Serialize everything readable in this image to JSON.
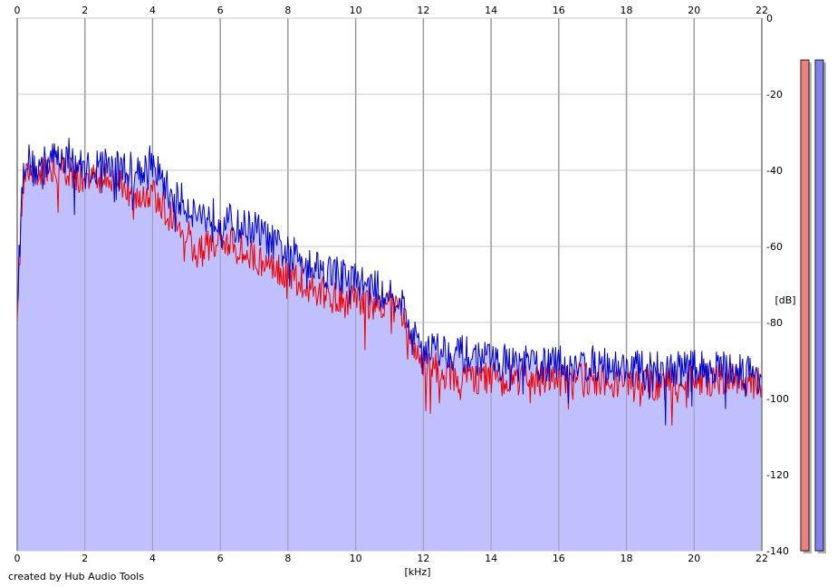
{
  "credit": "created by Hub Audio Tools",
  "chart_data": {
    "type": "area",
    "x_unit": "[kHz]",
    "y_unit": "[dB]",
    "xlim": [
      0,
      22
    ],
    "ylim": [
      -140,
      0
    ],
    "x_ticks": [
      "0",
      "2",
      "4",
      "6",
      "8",
      "10",
      "12",
      "14",
      "16",
      "18",
      "20",
      "22"
    ],
    "y_ticks": [
      "0",
      "-20",
      "-40",
      "-60",
      "-80",
      "-100",
      "-120",
      "-140"
    ],
    "grid": true,
    "colors": {
      "fill": "#c0c0ff",
      "series_blue": "#0000cc",
      "series_red": "#ee0000",
      "meter_red": "#f08080",
      "meter_blue": "#8080f0",
      "grid": "#a0a0a0"
    },
    "series": [
      {
        "color": "blue",
        "x": [
          0,
          0.15,
          0.25,
          0.5,
          1.0,
          1.5,
          2.0,
          2.5,
          3.0,
          3.5,
          4.0,
          4.5,
          5.0,
          5.5,
          6.0,
          6.5,
          7.0,
          7.5,
          8.0,
          8.5,
          9.0,
          9.5,
          10.0,
          10.5,
          11.0,
          11.3,
          11.7,
          12.0,
          12.5,
          13.0,
          13.5,
          14.0,
          15.0,
          16.0,
          17.0,
          18.0,
          19.0,
          20.0,
          21.0,
          22.0
        ],
        "y": [
          -75,
          -44,
          -36,
          -40,
          -37,
          -36,
          -40,
          -38,
          -39,
          -40,
          -38,
          -46,
          -49,
          -52,
          -52,
          -55,
          -55,
          -59,
          -62,
          -63,
          -66,
          -67,
          -69,
          -71,
          -72,
          -73,
          -84,
          -86,
          -87,
          -88,
          -89,
          -90,
          -91,
          -91,
          -91,
          -92,
          -92,
          -92,
          -92,
          -94
        ]
      },
      {
        "color": "red",
        "x": [
          0,
          0.15,
          0.25,
          0.5,
          1.0,
          1.5,
          2.0,
          2.5,
          3.0,
          3.5,
          4.0,
          4.5,
          5.0,
          5.3,
          5.6,
          6.0,
          6.5,
          7.0,
          7.5,
          8.0,
          8.5,
          9.0,
          9.5,
          10.0,
          10.5,
          11.0,
          11.3,
          11.7,
          12.0,
          12.5,
          13.0,
          14.0,
          15.0,
          16.0,
          17.0,
          18.0,
          19.0,
          20.0,
          21.0,
          22.0
        ],
        "y": [
          -80,
          -45,
          -38,
          -41,
          -39,
          -40,
          -43,
          -42,
          -44,
          -46,
          -45,
          -52,
          -56,
          -62,
          -60,
          -58,
          -60,
          -63,
          -65,
          -67,
          -70,
          -72,
          -74,
          -75,
          -75,
          -76,
          -77,
          -86,
          -90,
          -93,
          -94,
          -95,
          -95,
          -95,
          -95,
          -96,
          -96,
          -95,
          -95,
          -96
        ]
      }
    ]
  },
  "meters": [
    {
      "color": "red",
      "level_db": -11
    },
    {
      "color": "blue",
      "level_db": -11
    }
  ]
}
